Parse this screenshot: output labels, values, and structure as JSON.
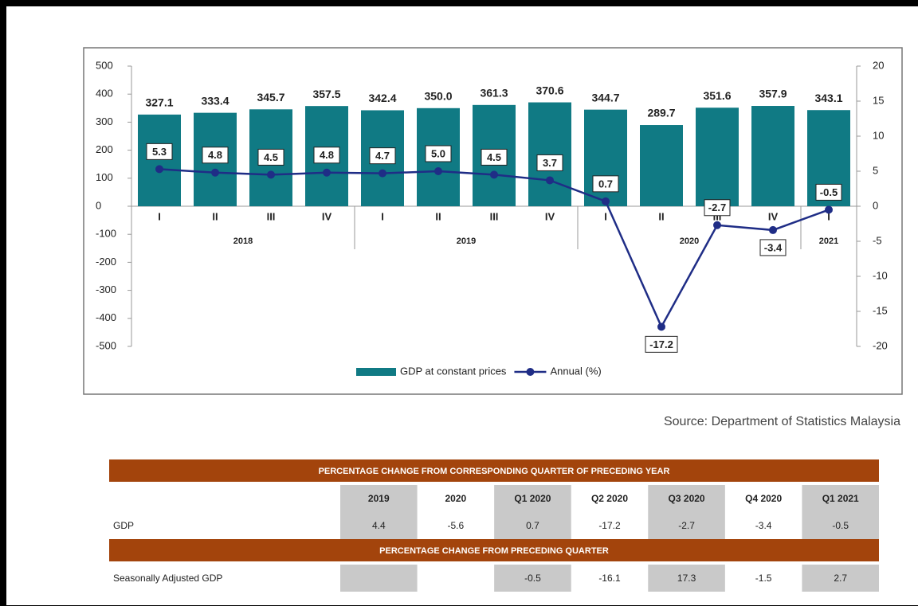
{
  "chart_data": {
    "type": "bar_line",
    "groups": [
      {
        "label": "2018",
        "categories": [
          "I",
          "II",
          "III",
          "IV"
        ]
      },
      {
        "label": "2019",
        "categories": [
          "I",
          "II",
          "III",
          "IV"
        ]
      },
      {
        "label": "2020",
        "categories": [
          "I",
          "II",
          "III",
          "IV"
        ]
      },
      {
        "label": "2021",
        "categories": [
          "I"
        ]
      }
    ],
    "series": [
      {
        "name": "GDP at constant prices",
        "type": "bar",
        "color": "#107a84",
        "values": [
          327.1,
          333.4,
          345.7,
          357.5,
          342.4,
          350.0,
          361.3,
          370.6,
          344.7,
          289.7,
          351.6,
          357.9,
          343.1
        ],
        "value_labels": [
          "327.1",
          "333.4",
          "345.7",
          "357.5",
          "342.4",
          "350.0",
          "361.3",
          "370.6",
          "344.7",
          "289.7",
          "351.6",
          "357.9",
          "343.1"
        ]
      },
      {
        "name": "Annual (%)",
        "type": "line",
        "axis": "y2",
        "color": "#1f2d86",
        "values": [
          5.3,
          4.8,
          4.5,
          4.8,
          4.7,
          5.0,
          4.5,
          3.7,
          0.7,
          -17.2,
          -2.7,
          -3.4,
          -0.5
        ],
        "value_labels": [
          "5.3",
          "4.8",
          "4.5",
          "4.8",
          "4.7",
          "5.0",
          "4.5",
          "3.7",
          "0.7",
          "-17.2",
          "-2.7",
          "-3.4",
          "-0.5"
        ]
      }
    ],
    "ylim": [
      -500,
      500
    ],
    "yticks": [
      -500,
      -400,
      -300,
      -200,
      -100,
      0,
      100,
      200,
      300,
      400,
      500
    ],
    "y2lim": [
      -20,
      20
    ],
    "y2ticks": [
      -20,
      -15,
      -10,
      -5,
      0,
      5,
      10,
      15,
      20
    ],
    "legend": "bottom"
  },
  "source": "Source: Department of Statistics Malaysia",
  "table": {
    "columns": [
      "2019",
      "2020",
      "Q1 2020",
      "Q2 2020",
      "Q3 2020",
      "Q4 2020",
      "Q1 2021"
    ],
    "sections": [
      {
        "title": "PERCENTAGE CHANGE FROM CORRESPONDING QUARTER OF PRECEDING YEAR",
        "rows": [
          {
            "label": "GDP",
            "values": [
              4.4,
              -5.6,
              0.7,
              -17.2,
              -2.7,
              -3.4,
              -0.5
            ]
          }
        ]
      },
      {
        "title": "PERCENTAGE CHANGE FROM PRECEDING QUARTER",
        "rows": [
          {
            "label": "Seasonally Adjusted GDP",
            "values": [
              null,
              null,
              -0.5,
              -16.1,
              17.3,
              -1.5,
              2.7
            ]
          }
        ]
      }
    ]
  }
}
